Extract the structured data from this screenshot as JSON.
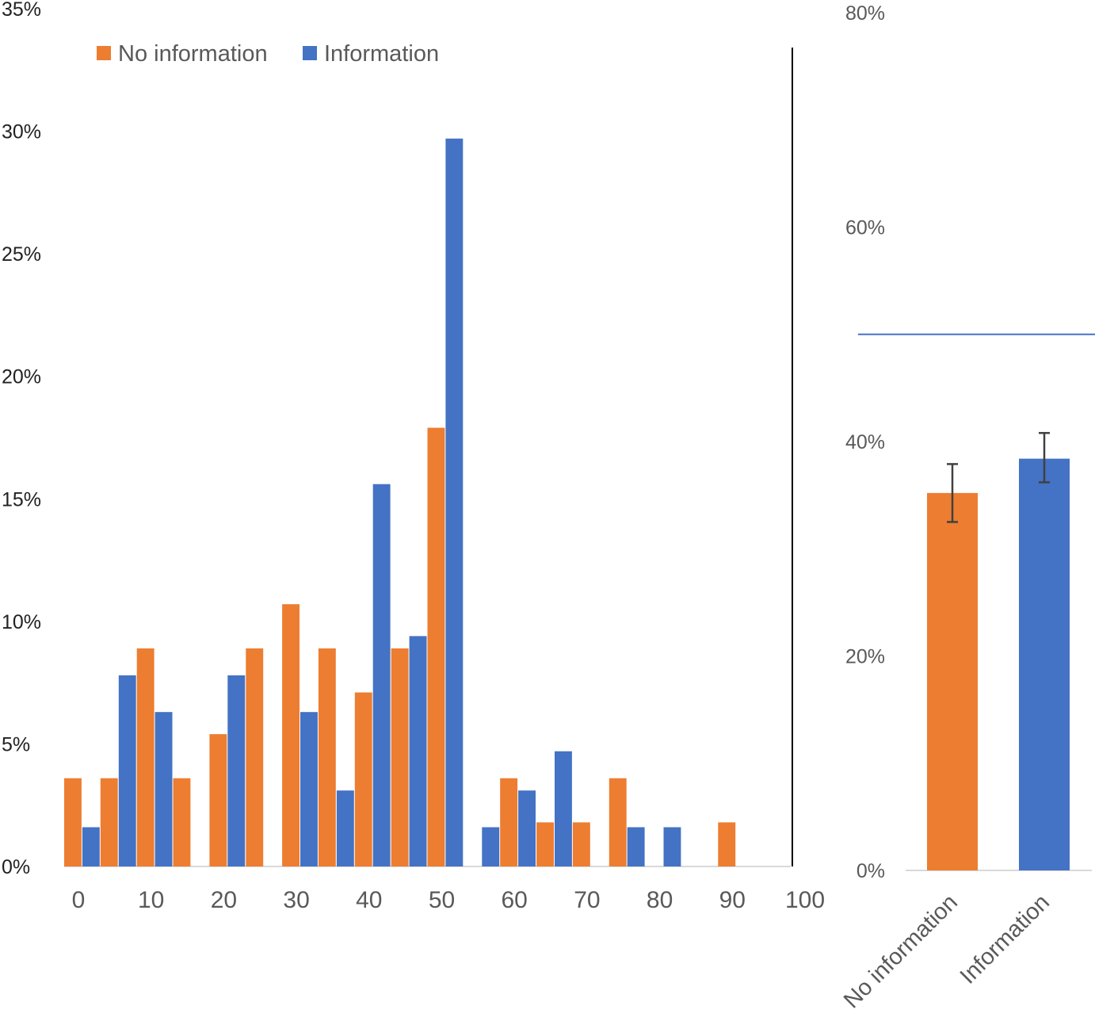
{
  "colors": {
    "no_information": "#ED7D31",
    "information": "#4472C4",
    "axis_left_text": "#222222",
    "axis_right_text": "#595959",
    "x_tick_text": "#595959",
    "baseline": "#D9D9D9",
    "divider": "#000000",
    "reference_line": "#4472C4",
    "error_bar": "#404040"
  },
  "legend": {
    "items": [
      {
        "label": "No information",
        "color_key": "no_information"
      },
      {
        "label": "Information",
        "color_key": "information"
      }
    ]
  },
  "chart_data": [
    {
      "type": "bar",
      "title": "",
      "xlabel": "",
      "ylabel": "",
      "legend_position": "top-left",
      "grid": false,
      "xlim": [
        0,
        100
      ],
      "x_ticks": [
        "0",
        "10",
        "20",
        "30",
        "40",
        "50",
        "60",
        "70",
        "80",
        "90",
        "100"
      ],
      "ylim": [
        0,
        0.35
      ],
      "y_ticks": [
        "0%",
        "5%",
        "10%",
        "15%",
        "20%",
        "25%",
        "30%",
        "35%"
      ],
      "bin_width": 5,
      "categories": [
        0,
        5,
        10,
        15,
        20,
        25,
        30,
        35,
        40,
        45,
        50,
        55,
        60,
        65,
        70,
        75,
        80,
        85,
        90,
        95,
        100
      ],
      "series": [
        {
          "name": "No information",
          "color_key": "no_information",
          "values": [
            0.036,
            0.036,
            0.089,
            0.036,
            0.054,
            0.089,
            0.107,
            0.089,
            0.071,
            0.089,
            0.179,
            0,
            0.036,
            0.018,
            0.018,
            0.036,
            0,
            0,
            0.018,
            0,
            0
          ]
        },
        {
          "name": "Information",
          "color_key": "information",
          "values": [
            0.016,
            0.078,
            0.063,
            0,
            0.078,
            0,
            0.063,
            0.031,
            0.156,
            0.094,
            0.297,
            0.016,
            0.031,
            0.047,
            0,
            0.016,
            0.016,
            0,
            0,
            0,
            0
          ]
        }
      ]
    },
    {
      "type": "bar",
      "title": "",
      "xlabel": "",
      "ylabel": "",
      "grid": false,
      "ylim": [
        0,
        0.8
      ],
      "y_ticks": [
        "0%",
        "20%",
        "40%",
        "60%",
        "80%"
      ],
      "reference_line": 0.5,
      "categories": [
        "No information",
        "Information"
      ],
      "values": [
        0.352,
        0.384
      ],
      "error_low": [
        0.325,
        0.362
      ],
      "error_high": [
        0.379,
        0.408
      ],
      "color_keys": [
        "no_information",
        "information"
      ]
    }
  ]
}
